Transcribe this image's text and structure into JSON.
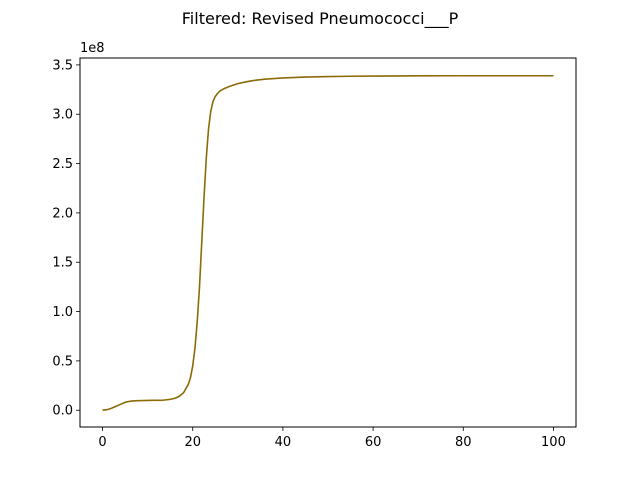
{
  "chart_data": {
    "type": "line",
    "title": "Filtered: Revised Pneumococci___P",
    "xlabel": "",
    "ylabel": "",
    "y_offset_label": "1e8",
    "xlim": [
      -5,
      105
    ],
    "ylim": [
      -0.17,
      3.57
    ],
    "x_ticks": [
      0,
      20,
      40,
      60,
      80,
      100
    ],
    "x_tick_labels": [
      "0",
      "20",
      "40",
      "60",
      "80",
      "100"
    ],
    "y_ticks": [
      0.0,
      0.5,
      1.0,
      1.5,
      2.0,
      2.5,
      3.0,
      3.5
    ],
    "y_tick_labels": [
      "0.0",
      "0.5",
      "1.0",
      "1.5",
      "2.0",
      "2.5",
      "3.0",
      "3.5"
    ],
    "grid": false,
    "colors": {
      "line": "#8b6b07",
      "axes": "#000000",
      "background": "#ffffff"
    },
    "series": [
      {
        "x": [
          0,
          1,
          2,
          3,
          4,
          5,
          6,
          7,
          8,
          9,
          10,
          11,
          12,
          13,
          14,
          15,
          16,
          17,
          18,
          19,
          19.5,
          20,
          20.5,
          21,
          21.5,
          22,
          22.5,
          23,
          23.5,
          24,
          24.5,
          25,
          25.5,
          26,
          27,
          28,
          29,
          30,
          32,
          34,
          36,
          38,
          40,
          45,
          50,
          55,
          60,
          70,
          80,
          90,
          100
        ],
        "values": [
          0.0,
          0.005,
          0.02,
          0.04,
          0.06,
          0.08,
          0.09,
          0.095,
          0.097,
          0.098,
          0.099,
          0.1,
          0.1,
          0.1,
          0.105,
          0.11,
          0.12,
          0.14,
          0.18,
          0.26,
          0.33,
          0.45,
          0.63,
          0.9,
          1.25,
          1.7,
          2.15,
          2.55,
          2.85,
          3.03,
          3.13,
          3.18,
          3.21,
          3.235,
          3.26,
          3.28,
          3.295,
          3.31,
          3.33,
          3.345,
          3.355,
          3.362,
          3.368,
          3.377,
          3.382,
          3.385,
          3.387,
          3.389,
          3.39,
          3.39,
          3.39
        ]
      }
    ]
  }
}
